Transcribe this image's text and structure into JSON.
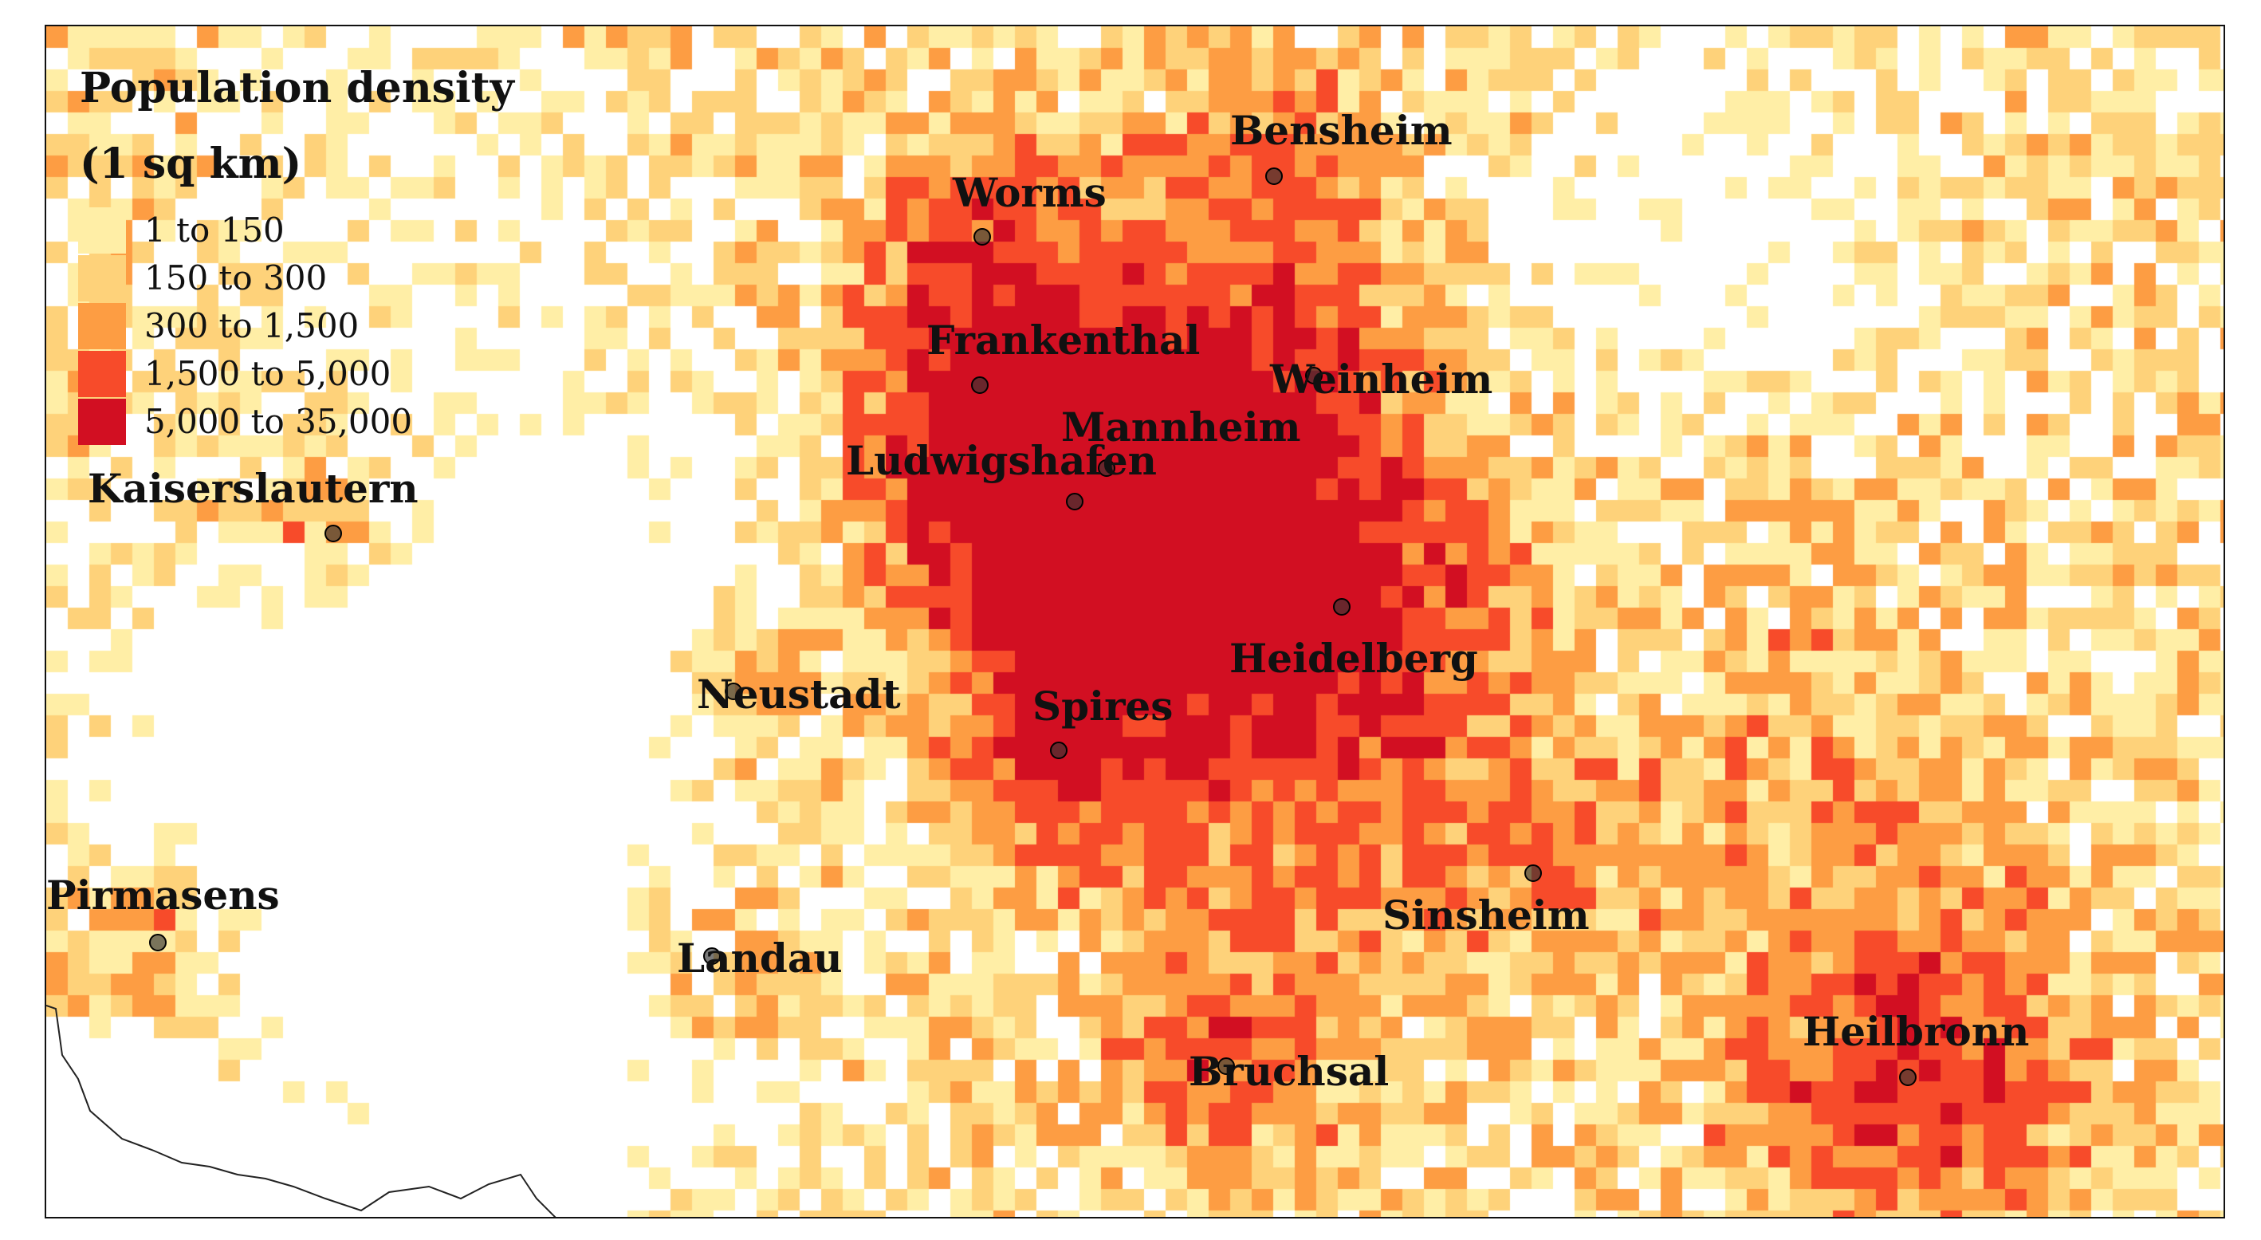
{
  "legend": {
    "title_line1": "Population density",
    "title_line2": "(1 sq km)",
    "items": [
      {
        "label": "1 to 150",
        "color": "#ffeea6"
      },
      {
        "label": "150 to 300",
        "color": "#fed27a"
      },
      {
        "label": "300 to 1,500",
        "color": "#fd9d43"
      },
      {
        "label": "1,500 to 5,000",
        "color": "#f74b2a"
      },
      {
        "label": "5,000 to 35,000",
        "color": "#d20f22"
      }
    ]
  },
  "cities": [
    {
      "name": "Bensheim"
    },
    {
      "name": "Worms"
    },
    {
      "name": "Frankenthal"
    },
    {
      "name": "Weinheim"
    },
    {
      "name": "Mannheim"
    },
    {
      "name": "Ludwigshafen"
    },
    {
      "name": "Kaiserslautern"
    },
    {
      "name": "Heidelberg"
    },
    {
      "name": "Neustadt"
    },
    {
      "name": "Spires"
    },
    {
      "name": "Pirmasens"
    },
    {
      "name": "Sinsheim"
    },
    {
      "name": "Landau"
    },
    {
      "name": "Bruchsal"
    },
    {
      "name": "Heilbronn"
    }
  ],
  "colors": {
    "city_marker": "#333333",
    "frame": "#111111",
    "border_line": "#222222"
  }
}
